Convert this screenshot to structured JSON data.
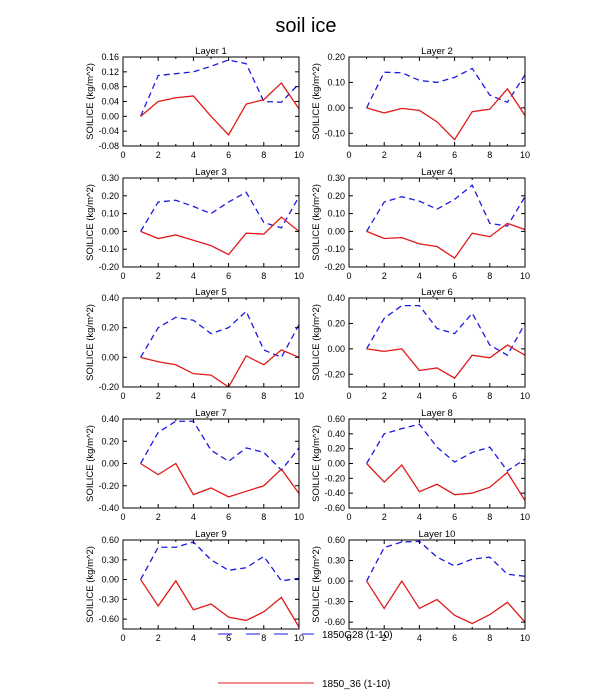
{
  "chart_data": {
    "type": "line",
    "title": "soil ice",
    "ylabel": "SOILICE  (kg/m^2)",
    "x": [
      1,
      2,
      3,
      4,
      5,
      6,
      7,
      8,
      9,
      10
    ],
    "xlim": [
      0,
      10
    ],
    "xticks": [
      0,
      2,
      4,
      6,
      8,
      10
    ],
    "legend": [
      {
        "name": "1850G28 (1-10)",
        "color": "#1a1ae0",
        "dash": "dashed"
      },
      {
        "name": "1850_36 (1-10)",
        "color": "#e01a1a",
        "dash": "solid"
      }
    ],
    "panels": [
      {
        "title": "Layer 1",
        "ylim": [
          -0.08,
          0.16
        ],
        "yticks": [
          "-0.08",
          "-0.04",
          "0.00",
          "0.04",
          "0.08",
          "0.12",
          "0.16"
        ],
        "series": [
          {
            "name": "1850G28 (1-10)",
            "values": [
              0.0,
              0.11,
              0.115,
              0.12,
              0.135,
              0.152,
              0.142,
              0.04,
              0.038,
              0.088
            ]
          },
          {
            "name": "1850_36 (1-10)",
            "values": [
              0.0,
              0.04,
              0.05,
              0.055,
              0.0,
              -0.05,
              0.033,
              0.045,
              0.09,
              0.02
            ]
          }
        ]
      },
      {
        "title": "Layer 2",
        "ylim": [
          -0.15,
          0.2
        ],
        "yticks": [
          "-0.10",
          "0.00",
          "0.10",
          "0.20"
        ],
        "series": [
          {
            "name": "1850G28 (1-10)",
            "values": [
              0.0,
              0.14,
              0.138,
              0.108,
              0.1,
              0.12,
              0.155,
              0.05,
              0.022,
              0.13
            ]
          },
          {
            "name": "1850_36 (1-10)",
            "values": [
              0.0,
              -0.02,
              -0.002,
              -0.01,
              -0.055,
              -0.125,
              -0.015,
              -0.005,
              0.075,
              -0.03
            ]
          }
        ]
      },
      {
        "title": "Layer 3",
        "ylim": [
          -0.2,
          0.3
        ],
        "yticks": [
          "-0.20",
          "-0.10",
          "0.00",
          "0.10",
          "0.20",
          "0.30"
        ],
        "series": [
          {
            "name": "1850G28 (1-10)",
            "values": [
              0.0,
              0.165,
              0.175,
              0.14,
              0.1,
              0.165,
              0.22,
              0.05,
              0.02,
              0.195
            ]
          },
          {
            "name": "1850_36 (1-10)",
            "values": [
              0.0,
              -0.04,
              -0.02,
              -0.05,
              -0.08,
              -0.13,
              -0.01,
              -0.015,
              0.08,
              0.0
            ]
          }
        ]
      },
      {
        "title": "Layer 4",
        "ylim": [
          -0.2,
          0.3
        ],
        "yticks": [
          "-0.20",
          "-0.10",
          "0.00",
          "0.10",
          "0.20",
          "0.30"
        ],
        "series": [
          {
            "name": "1850G28 (1-10)",
            "values": [
              0.0,
              0.165,
              0.195,
              0.17,
              0.125,
              0.18,
              0.26,
              0.045,
              0.03,
              0.195
            ]
          },
          {
            "name": "1850_36 (1-10)",
            "values": [
              0.0,
              -0.04,
              -0.035,
              -0.07,
              -0.085,
              -0.15,
              -0.01,
              -0.03,
              0.045,
              0.01
            ]
          }
        ]
      },
      {
        "title": "Layer 5",
        "ylim": [
          -0.2,
          0.4
        ],
        "yticks": [
          "-0.20",
          "0.00",
          "0.20",
          "0.40"
        ],
        "series": [
          {
            "name": "1850G28 (1-10)",
            "values": [
              0.0,
              0.2,
              0.27,
              0.25,
              0.16,
              0.2,
              0.31,
              0.05,
              0.0,
              0.22
            ]
          },
          {
            "name": "1850_36 (1-10)",
            "values": [
              0.0,
              -0.03,
              -0.05,
              -0.11,
              -0.12,
              -0.2,
              0.01,
              -0.05,
              0.05,
              0.0
            ]
          }
        ]
      },
      {
        "title": "Layer 6",
        "ylim": [
          -0.3,
          0.4
        ],
        "yticks": [
          "-0.20",
          "0.00",
          "0.20",
          "0.40"
        ],
        "series": [
          {
            "name": "1850G28 (1-10)",
            "values": [
              0.0,
              0.24,
              0.34,
              0.34,
              0.16,
              0.12,
              0.28,
              0.03,
              -0.05,
              0.2
            ]
          },
          {
            "name": "1850_36 (1-10)",
            "values": [
              0.0,
              -0.02,
              0.0,
              -0.17,
              -0.15,
              -0.23,
              -0.05,
              -0.07,
              0.03,
              -0.05
            ]
          }
        ]
      },
      {
        "title": "Layer 7",
        "ylim": [
          -0.4,
          0.4
        ],
        "yticks": [
          "-0.40",
          "-0.20",
          "0.00",
          "0.20",
          "0.40"
        ],
        "series": [
          {
            "name": "1850G28 (1-10)",
            "values": [
              0.0,
              0.28,
              0.38,
              0.38,
              0.12,
              0.02,
              0.14,
              0.1,
              -0.06,
              0.14
            ]
          },
          {
            "name": "1850_36 (1-10)",
            "values": [
              0.0,
              -0.1,
              0.0,
              -0.28,
              -0.22,
              -0.3,
              -0.25,
              -0.2,
              -0.05,
              -0.27
            ]
          }
        ]
      },
      {
        "title": "Layer 8",
        "ylim": [
          -0.6,
          0.6
        ],
        "yticks": [
          "-0.60",
          "-0.40",
          "-0.20",
          "0.00",
          "0.20",
          "0.40",
          "0.60"
        ],
        "series": [
          {
            "name": "1850G28 (1-10)",
            "values": [
              0.0,
              0.4,
              0.47,
              0.53,
              0.22,
              0.02,
              0.15,
              0.22,
              -0.1,
              0.06
            ]
          },
          {
            "name": "1850_36 (1-10)",
            "values": [
              0.0,
              -0.25,
              -0.02,
              -0.38,
              -0.28,
              -0.42,
              -0.4,
              -0.32,
              -0.12,
              -0.5
            ]
          }
        ]
      },
      {
        "title": "Layer 9",
        "ylim": [
          -0.75,
          0.6
        ],
        "yticks": [
          "-0.60",
          "-0.30",
          "0.00",
          "0.30",
          "0.60"
        ],
        "series": [
          {
            "name": "1850G28 (1-10)",
            "values": [
              0.0,
              0.49,
              0.49,
              0.57,
              0.3,
              0.14,
              0.18,
              0.35,
              -0.02,
              0.02
            ]
          },
          {
            "name": "1850_36 (1-10)",
            "values": [
              0.0,
              -0.4,
              -0.02,
              -0.46,
              -0.37,
              -0.57,
              -0.62,
              -0.49,
              -0.27,
              -0.72
            ]
          }
        ]
      },
      {
        "title": "Layer 10",
        "ylim": [
          -0.7,
          0.6
        ],
        "yticks": [
          "-0.60",
          "-0.30",
          "0.00",
          "0.30",
          "0.60"
        ],
        "series": [
          {
            "name": "1850G28 (1-10)",
            "values": [
              0.0,
              0.49,
              0.57,
              0.58,
              0.35,
              0.22,
              0.32,
              0.35,
              0.1,
              0.07
            ]
          },
          {
            "name": "1850_36 (1-10)",
            "values": [
              0.0,
              -0.4,
              0.0,
              -0.4,
              -0.27,
              -0.5,
              -0.62,
              -0.49,
              -0.31,
              -0.6
            ]
          }
        ]
      }
    ]
  }
}
